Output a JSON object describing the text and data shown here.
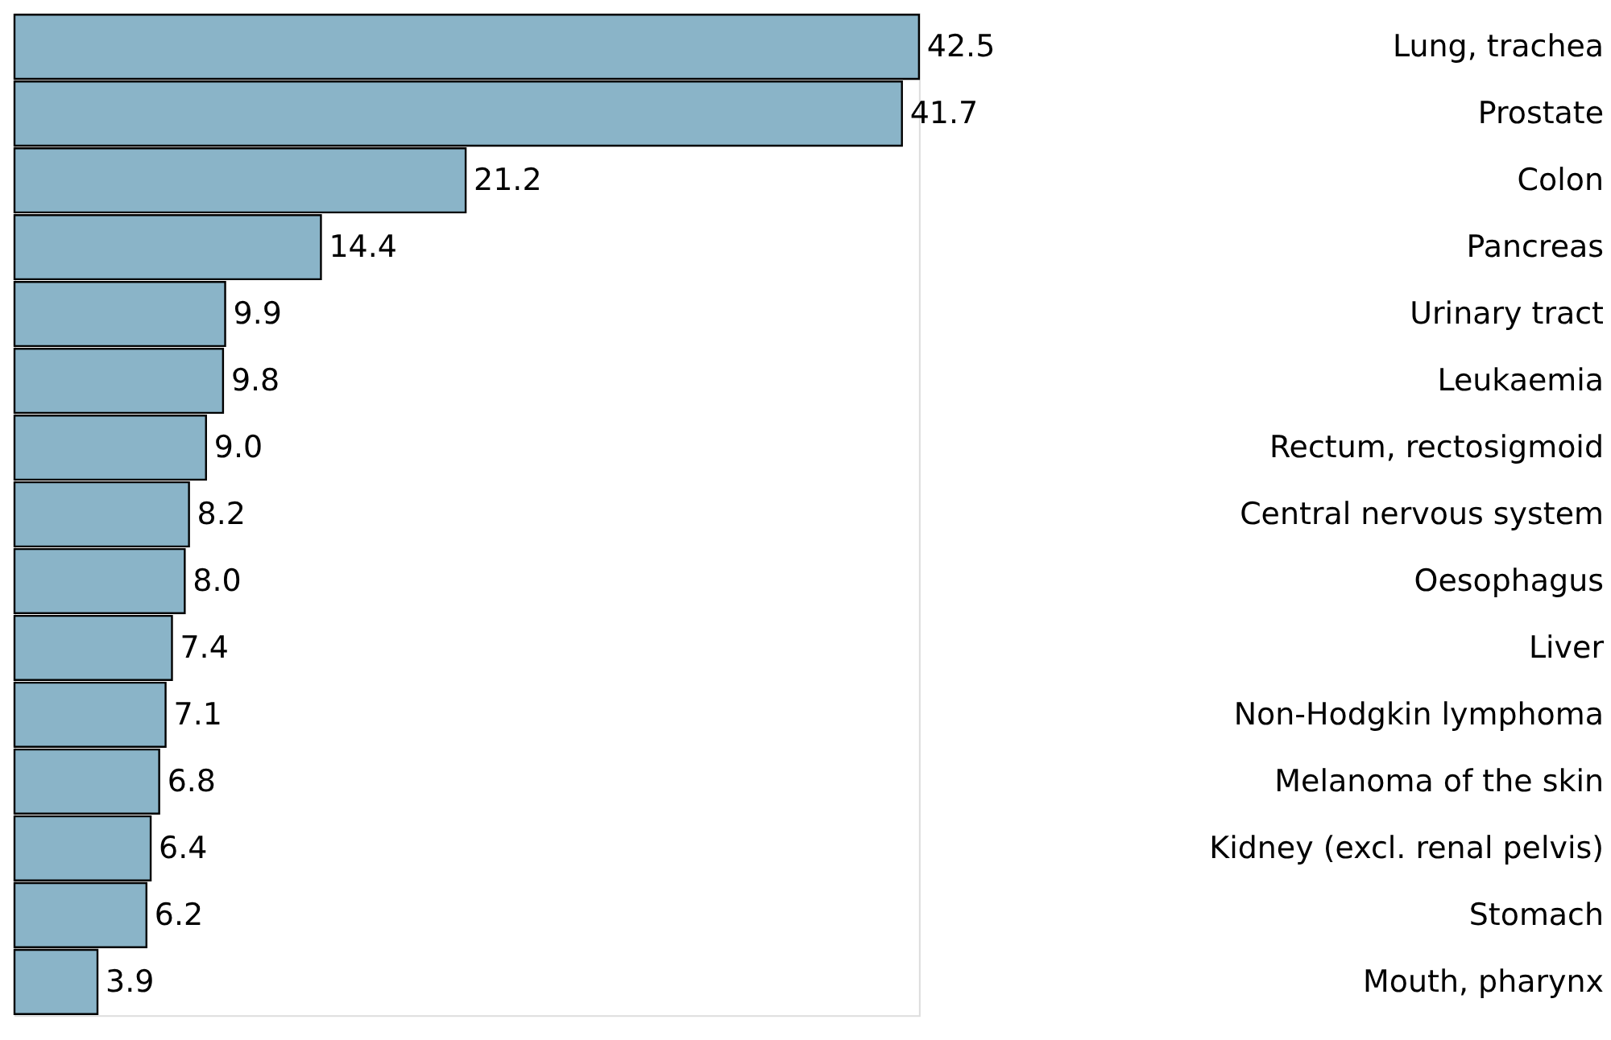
{
  "chart_data": {
    "type": "bar",
    "orientation": "horizontal",
    "grid": false,
    "tick_labels": "y",
    "categories": [
      "Lung, trachea",
      "Prostate",
      "Colon",
      "Pancreas",
      "Urinary tract",
      "Leukaemia",
      "Rectum, rectosigmoid",
      "Central nervous system",
      "Oesophagus",
      "Liver",
      "Non-Hodgkin lymphoma",
      "Melanoma of the skin",
      "Kidney (excl. renal pelvis)",
      "Stomach",
      "Mouth, pharynx"
    ],
    "values": [
      42.5,
      41.7,
      21.2,
      14.4,
      9.9,
      9.8,
      9.0,
      8.2,
      8.0,
      7.4,
      7.1,
      6.8,
      6.4,
      6.2,
      3.9
    ],
    "value_labels": [
      "42.5",
      "41.7",
      "21.2",
      "14.4",
      "9.9",
      "9.8",
      "9.0",
      "8.2",
      "8.0",
      "7.4",
      "7.1",
      "6.8",
      "6.4",
      "6.2",
      "3.9"
    ],
    "color": "#8ab4c8"
  }
}
